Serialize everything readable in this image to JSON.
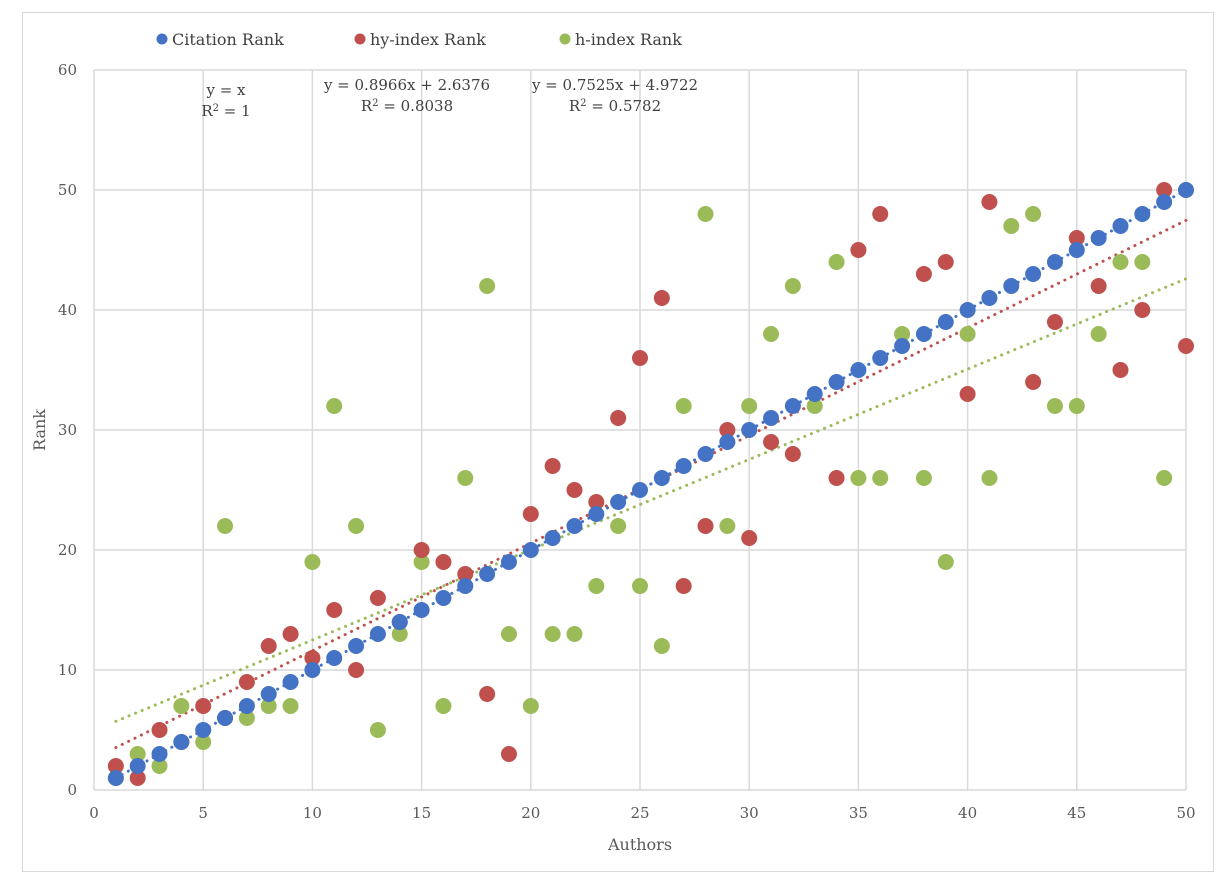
{
  "chart_data": {
    "type": "scatter",
    "xlabel": "Authors",
    "ylabel": "Rank",
    "xlim": [
      0,
      50
    ],
    "ylim": [
      0,
      60
    ],
    "xticks": [
      "0",
      "5",
      "10",
      "15",
      "20",
      "25",
      "30",
      "35",
      "40",
      "45",
      "50"
    ],
    "yticks": [
      "0",
      "10",
      "20",
      "30",
      "40",
      "50",
      "60"
    ],
    "grid": true,
    "legend_position": "top",
    "series": [
      {
        "name": "Citation Rank",
        "color": "#4472C4",
        "x": [
          1,
          2,
          3,
          4,
          5,
          6,
          7,
          8,
          9,
          10,
          11,
          12,
          13,
          14,
          15,
          16,
          17,
          18,
          19,
          20,
          21,
          22,
          23,
          24,
          25,
          26,
          27,
          28,
          29,
          30,
          31,
          32,
          33,
          34,
          35,
          36,
          37,
          38,
          39,
          40,
          41,
          42,
          43,
          44,
          45,
          46,
          47,
          48,
          49,
          50
        ],
        "y": [
          1,
          2,
          3,
          4,
          5,
          6,
          7,
          8,
          9,
          10,
          11,
          12,
          13,
          14,
          15,
          16,
          17,
          18,
          19,
          20,
          21,
          22,
          23,
          24,
          25,
          26,
          27,
          28,
          29,
          30,
          31,
          32,
          33,
          34,
          35,
          36,
          37,
          38,
          39,
          40,
          41,
          42,
          43,
          44,
          45,
          46,
          47,
          48,
          49,
          50
        ],
        "trend": {
          "slope": 1,
          "intercept": 0,
          "equation": "y = x",
          "r2_prefix": "R",
          "r2_value": " = 1"
        }
      },
      {
        "name": "hy-index Rank",
        "color": "#C0504D",
        "x": [
          1,
          2,
          3,
          4,
          5,
          6,
          7,
          8,
          9,
          10,
          11,
          12,
          13,
          14,
          15,
          16,
          17,
          18,
          19,
          20,
          21,
          22,
          23,
          24,
          25,
          26,
          27,
          28,
          29,
          30,
          31,
          32,
          34,
          35,
          36,
          38,
          39,
          40,
          41,
          43,
          44,
          45,
          46,
          47,
          48,
          49,
          50
        ],
        "y": [
          2,
          1,
          5,
          4,
          7,
          6,
          9,
          12,
          13,
          11,
          15,
          10,
          16,
          14,
          20,
          19,
          18,
          8,
          3,
          23,
          27,
          25,
          24,
          31,
          36,
          41,
          17,
          22,
          30,
          21,
          29,
          28,
          26,
          45,
          48,
          43,
          44,
          33,
          49,
          34,
          39,
          46,
          42,
          35,
          40,
          50,
          37
        ],
        "trend": {
          "slope": 0.8966,
          "intercept": 2.6376,
          "equation": "y = 0.8966x + 2.6376",
          "r2_prefix": "R",
          "r2_value": " = 0.8038"
        }
      },
      {
        "name": "h-index Rank",
        "color": "#9BBB59",
        "x": [
          1,
          2,
          3,
          4,
          5,
          6,
          7,
          8,
          9,
          10,
          11,
          12,
          13,
          14,
          15,
          16,
          17,
          18,
          19,
          20,
          21,
          22,
          23,
          24,
          25,
          26,
          27,
          28,
          29,
          30,
          31,
          32,
          33,
          34,
          35,
          36,
          37,
          38,
          39,
          40,
          41,
          42,
          43,
          44,
          45,
          46,
          47,
          48,
          49,
          50
        ],
        "y": [
          1,
          3,
          2,
          7,
          4,
          22,
          6,
          7,
          7,
          19,
          32,
          22,
          5,
          13,
          19,
          7,
          26,
          42,
          13,
          7,
          13,
          13,
          17,
          22,
          17,
          12,
          32,
          48,
          22,
          32,
          38,
          42,
          32,
          44,
          26,
          26,
          38,
          26,
          19,
          38,
          26,
          47,
          48,
          32,
          32,
          38,
          44,
          44,
          26,
          50
        ],
        "trend": {
          "slope": 0.7525,
          "intercept": 4.9722,
          "equation": "y = 0.7525x + 4.9722",
          "r2_prefix": "R",
          "r2_value": " = 0.5782"
        }
      }
    ]
  }
}
